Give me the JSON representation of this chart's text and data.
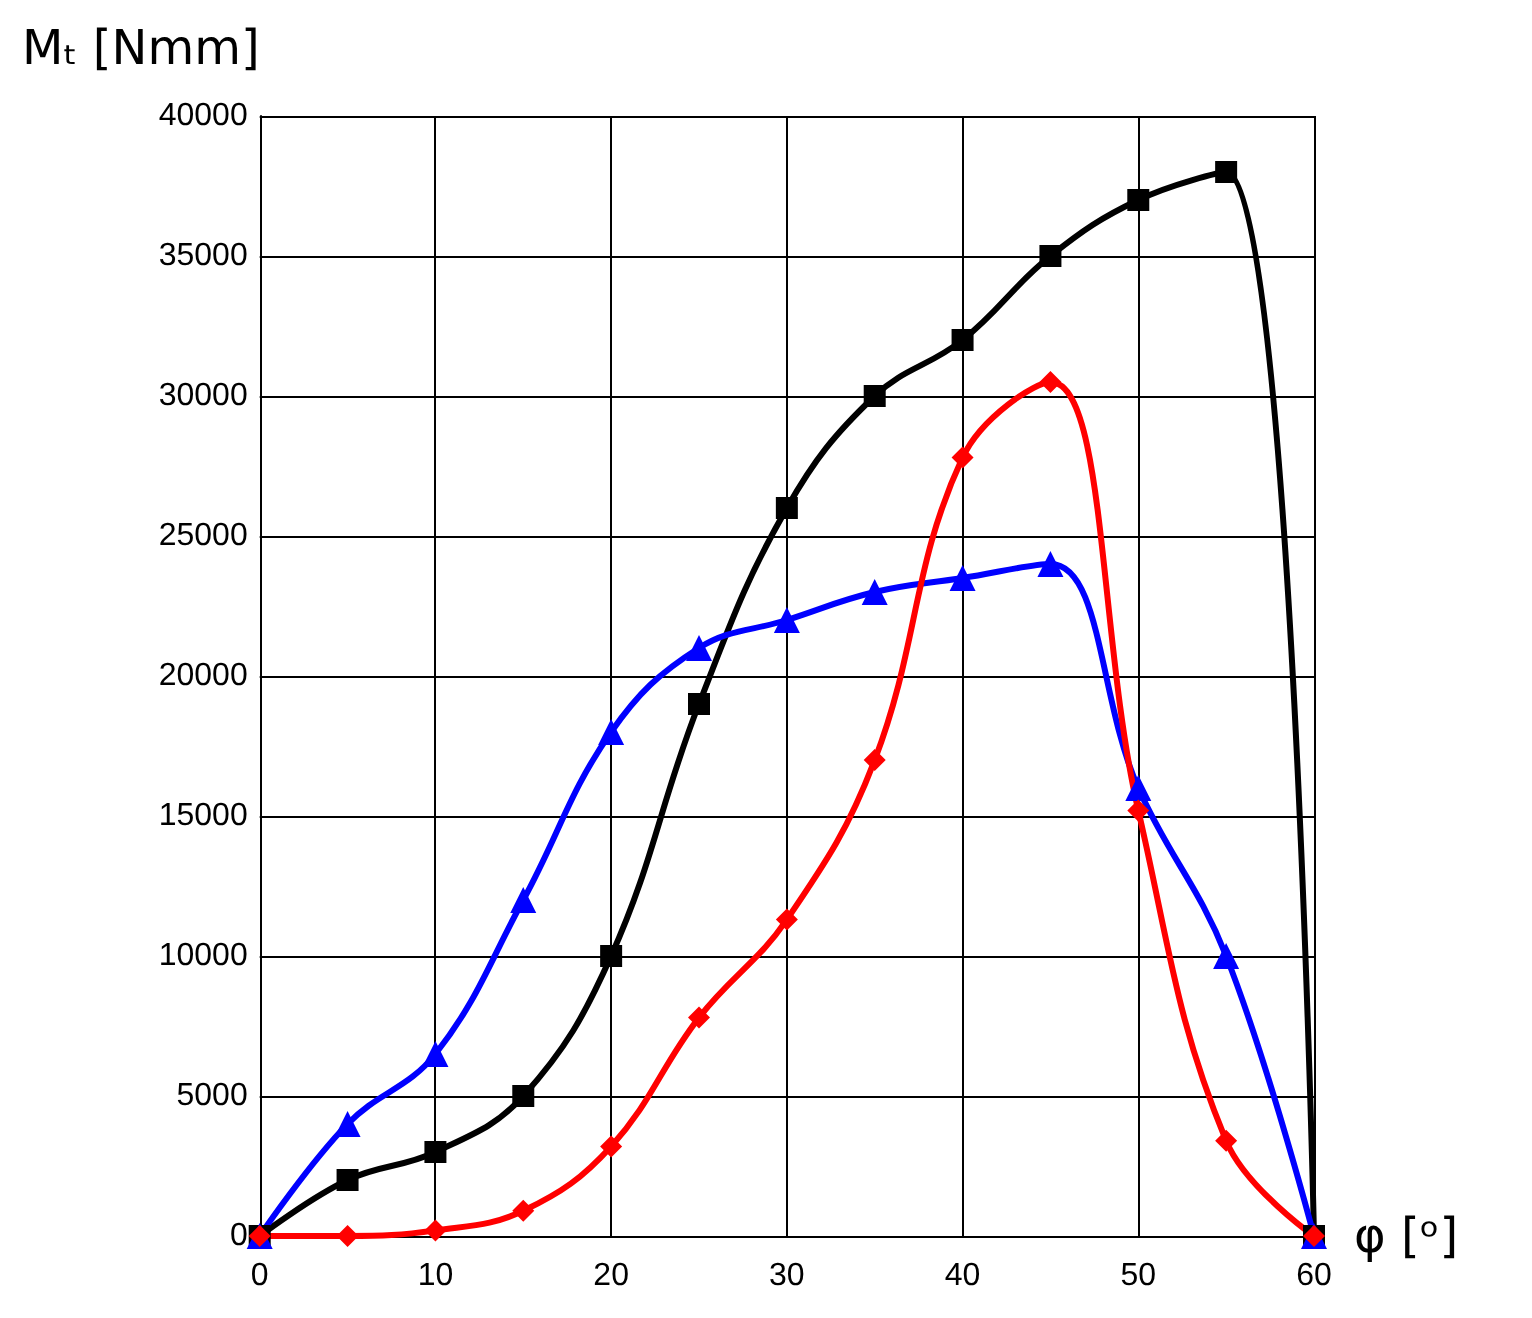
{
  "chart_data": {
    "type": "line",
    "ylabel": "Mₜ [Nmm]",
    "xlabel": "φ [ᵒ]",
    "x": [
      0,
      5,
      10,
      15,
      20,
      25,
      30,
      35,
      40,
      45,
      50,
      55,
      60
    ],
    "xlim": [
      0,
      60
    ],
    "xticks": [
      0,
      10,
      20,
      30,
      40,
      50,
      60
    ],
    "ylim": [
      0,
      40000
    ],
    "yticks": [
      0,
      5000,
      10000,
      15000,
      20000,
      25000,
      30000,
      35000,
      40000
    ],
    "grid": true,
    "line_style": "solid",
    "series": [
      {
        "color": "#000000",
        "marker": "square",
        "values": [
          0,
          2000,
          3000,
          5000,
          10000,
          19000,
          26000,
          30000,
          32000,
          35000,
          37000,
          38000,
          0
        ]
      },
      {
        "color": "#0000ff",
        "marker": "triangle",
        "values": [
          0,
          4000,
          6500,
          12000,
          18000,
          21000,
          22000,
          23000,
          23500,
          24000,
          16000,
          10000,
          0
        ]
      },
      {
        "color": "#ff0000",
        "marker": "diamond",
        "values": [
          0,
          0,
          200,
          900,
          3200,
          7800,
          11300,
          17000,
          27800,
          30500,
          15200,
          3400,
          0
        ]
      }
    ]
  }
}
